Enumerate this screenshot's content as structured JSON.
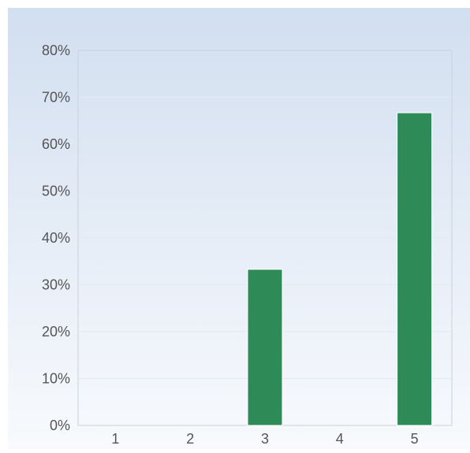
{
  "chart_data": {
    "type": "bar",
    "categories": [
      "1",
      "2",
      "3",
      "4",
      "5"
    ],
    "values": [
      0,
      0,
      33.3,
      0,
      66.7
    ],
    "ylim": [
      0,
      80
    ],
    "yticks": [
      "0%",
      "10%",
      "20%",
      "30%",
      "40%",
      "50%",
      "60%",
      "70%",
      "80%"
    ],
    "grid": true,
    "legend": "none",
    "colors": {
      "bar": "#2e8b57",
      "bar_edge": "#ffffff",
      "bg_top": "#d2dff0",
      "bg_bottom": "#f8fafd",
      "grid": "#e3e9f1",
      "frame": "#c9d1dc",
      "tick_text": "#555555"
    }
  }
}
